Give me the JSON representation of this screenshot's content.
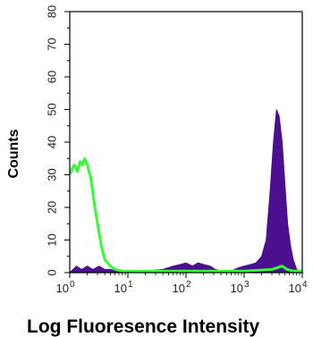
{
  "chart_data": {
    "type": "area",
    "title": "",
    "xlabel": "Log Fluoresence Intensity",
    "ylabel": "Counts",
    "x_scale": "log",
    "xlim": [
      1,
      10000
    ],
    "ylim": [
      0,
      80
    ],
    "x_ticks": [
      {
        "value": 1,
        "base": "10",
        "exp": "0"
      },
      {
        "value": 10,
        "base": "10",
        "exp": "1"
      },
      {
        "value": 100,
        "base": "10",
        "exp": "2"
      },
      {
        "value": 1000,
        "base": "10",
        "exp": "3"
      },
      {
        "value": 10000,
        "base": "10",
        "exp": "4"
      }
    ],
    "y_ticks": [
      "0",
      "10",
      "20",
      "30",
      "40",
      "50",
      "60",
      "70",
      "80"
    ],
    "grid": false,
    "series": [
      {
        "style": "filled",
        "color": "#4b0f8f",
        "points": [
          [
            1,
            0
          ],
          [
            1.3,
            2
          ],
          [
            1.6,
            1
          ],
          [
            2,
            2
          ],
          [
            2.5,
            1
          ],
          [
            3.2,
            2
          ],
          [
            4,
            1
          ],
          [
            5,
            1
          ],
          [
            6.5,
            0.5
          ],
          [
            10,
            0.3
          ],
          [
            20,
            0.5
          ],
          [
            40,
            1
          ],
          [
            60,
            2
          ],
          [
            80,
            2.5
          ],
          [
            100,
            3
          ],
          [
            130,
            2
          ],
          [
            160,
            3
          ],
          [
            200,
            2.5
          ],
          [
            260,
            2
          ],
          [
            320,
            1
          ],
          [
            400,
            0.5
          ],
          [
            600,
            0.5
          ],
          [
            800,
            1.5
          ],
          [
            1000,
            2
          ],
          [
            1300,
            2.5
          ],
          [
            1600,
            3
          ],
          [
            2000,
            5
          ],
          [
            2400,
            10
          ],
          [
            2800,
            25
          ],
          [
            3200,
            40
          ],
          [
            3600,
            50
          ],
          [
            4000,
            48
          ],
          [
            4500,
            40
          ],
          [
            5000,
            28
          ],
          [
            5600,
            15
          ],
          [
            6300,
            8
          ],
          [
            7000,
            4
          ],
          [
            8000,
            1
          ],
          [
            10000,
            0
          ]
        ]
      },
      {
        "style": "line",
        "color": "#33ff33",
        "points": [
          [
            1,
            30
          ],
          [
            1.1,
            32
          ],
          [
            1.2,
            33
          ],
          [
            1.35,
            31
          ],
          [
            1.5,
            34
          ],
          [
            1.65,
            33
          ],
          [
            1.8,
            35
          ],
          [
            2,
            33
          ],
          [
            2.3,
            29
          ],
          [
            2.6,
            22
          ],
          [
            3,
            15
          ],
          [
            3.5,
            8
          ],
          [
            4,
            4
          ],
          [
            5,
            2
          ],
          [
            6,
            1
          ],
          [
            8,
            0.5
          ],
          [
            10,
            0.5
          ],
          [
            20,
            0.5
          ],
          [
            100,
            0.5
          ],
          [
            1000,
            0.5
          ],
          [
            3000,
            1
          ],
          [
            4500,
            2
          ],
          [
            5500,
            1
          ],
          [
            7000,
            0.5
          ],
          [
            10000,
            0.5
          ]
        ]
      }
    ]
  }
}
